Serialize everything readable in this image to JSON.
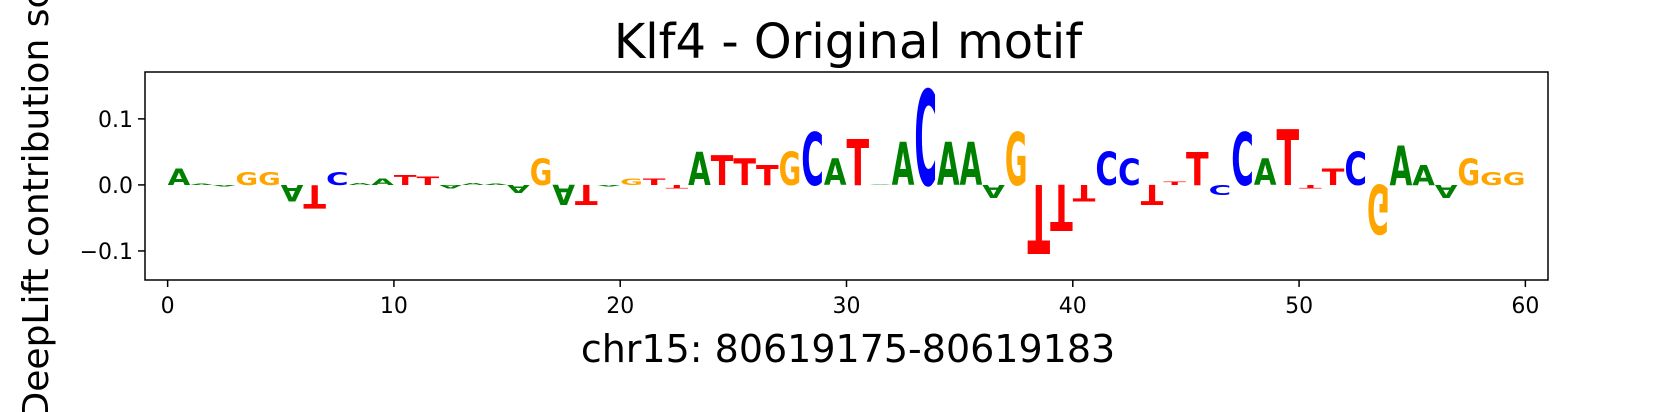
{
  "chart_data": {
    "type": "logo",
    "title": "Klf4 - Original motif",
    "x_label": "chr15: 80619175-80619183",
    "y_label": "DeepLift contribution score",
    "letters": [
      "A",
      "A",
      "A",
      "G",
      "G",
      "A",
      "T",
      "C",
      "A",
      "A",
      "T",
      "T",
      "A",
      "A",
      "A",
      "A",
      "G",
      "A",
      "T",
      "A",
      "G",
      "T",
      "T",
      "A",
      "T",
      "T",
      "T",
      "G",
      "C",
      "A",
      "T",
      "A",
      "A",
      "C",
      "A",
      "A",
      "A",
      "G",
      "T",
      "T",
      "T",
      "C",
      "C",
      "T",
      "T",
      "T",
      "C",
      "C",
      "A",
      "T",
      "T",
      "T",
      "C",
      "G",
      "A",
      "A",
      "A",
      "G",
      "G",
      "G"
    ],
    "values": [
      0.025,
      0.002,
      -0.002,
      0.02,
      0.02,
      -0.025,
      -0.035,
      0.02,
      0.003,
      0.01,
      0.015,
      0.013,
      -0.005,
      0.003,
      0.002,
      -0.012,
      0.04,
      -0.03,
      -0.03,
      -0.002,
      0.01,
      0.01,
      -0.005,
      0.05,
      0.045,
      0.04,
      0.03,
      0.05,
      0.08,
      0.04,
      0.07,
      0.001,
      0.065,
      0.145,
      0.065,
      0.065,
      -0.02,
      0.08,
      -0.105,
      -0.07,
      -0.025,
      0.05,
      0.04,
      -0.03,
      0.005,
      0.05,
      -0.015,
      0.08,
      0.04,
      0.085,
      -0.005,
      0.025,
      0.05,
      -0.075,
      0.06,
      0.03,
      -0.02,
      0.04,
      0.02,
      0.02
    ],
    "colors": {
      "A": "#008000",
      "C": "#0000ff",
      "G": "#ffa500",
      "T": "#ff0000"
    },
    "xlim": [
      -1,
      61
    ],
    "ylim": [
      -0.144,
      0.171
    ],
    "xticks": [
      0,
      10,
      20,
      30,
      40,
      50,
      60
    ],
    "yticks": [
      {
        "value": -0.1,
        "label": "−0.1"
      },
      {
        "value": 0,
        "label": "0.0"
      },
      {
        "value": 0.1,
        "label": "0.1"
      }
    ]
  }
}
